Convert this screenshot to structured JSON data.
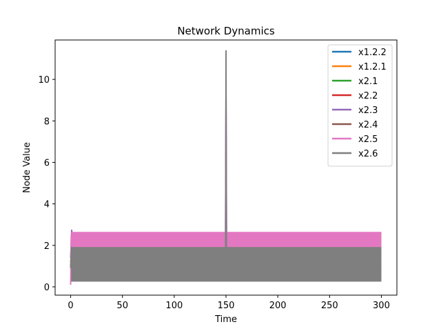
{
  "chart_data": {
    "type": "line",
    "title": "Network Dynamics",
    "xlabel": "Time",
    "ylabel": "Node Value",
    "xlim": [
      -15,
      315
    ],
    "ylim": [
      -0.4,
      11.9
    ],
    "xticks": [
      0,
      50,
      100,
      150,
      200,
      250,
      300
    ],
    "yticks": [
      0,
      2,
      4,
      6,
      8,
      10
    ],
    "grid": false,
    "legend": "top-right",
    "series": [
      {
        "name": "x1.2.2",
        "color": "#1f77b4",
        "x": [
          0,
          2,
          4,
          150,
          151,
          155,
          300
        ],
        "y": [
          1.0,
          2.3,
          1.8,
          1.9,
          1.7,
          1.5,
          1.3
        ],
        "band": [
          0.3,
          2.6
        ]
      },
      {
        "name": "x1.2.1",
        "color": "#ff7f0e",
        "x": [
          0,
          2,
          4,
          150,
          152,
          300
        ],
        "y": [
          1.2,
          2.4,
          1.9,
          2.0,
          1.8,
          1.6
        ],
        "band": [
          0.3,
          2.6
        ]
      },
      {
        "name": "x2.1",
        "color": "#2ca02c",
        "x": [
          0,
          5,
          150,
          153,
          300
        ],
        "y": [
          1.0,
          2.0,
          1.8,
          2.5,
          1.6
        ],
        "band": [
          0.3,
          2.6
        ]
      },
      {
        "name": "x2.2",
        "color": "#d62728",
        "x": [
          0,
          5,
          150,
          300
        ],
        "y": [
          1.0,
          2.0,
          1.8,
          1.7
        ],
        "band": [
          0.3,
          2.6
        ]
      },
      {
        "name": "x2.3",
        "color": "#9467bd",
        "x": [
          0,
          1,
          3,
          149.5,
          150,
          150.5,
          152,
          300
        ],
        "y": [
          1.4,
          2.75,
          1.5,
          2.0,
          9.3,
          2.5,
          1.8,
          1.7
        ],
        "band": [
          0.3,
          2.6
        ]
      },
      {
        "name": "x2.4",
        "color": "#8c564b",
        "x": [
          0,
          3,
          150,
          151,
          300
        ],
        "y": [
          1.0,
          1.9,
          1.9,
          2.2,
          1.6
        ],
        "band": [
          0.3,
          2.6
        ]
      },
      {
        "name": "x2.5",
        "color": "#e377c2",
        "x": [
          0,
          0.6,
          2,
          149.5,
          150,
          150.5,
          300
        ],
        "y": [
          0.1,
          2.5,
          1.7,
          1.5,
          9.0,
          1.2,
          0.7
        ],
        "band": [
          0.3,
          2.65
        ]
      },
      {
        "name": "x2.6",
        "color": "#7f7f7f",
        "x": [
          0,
          1,
          149.6,
          150,
          150.4,
          300
        ],
        "y": [
          0.9,
          1.9,
          0.5,
          11.4,
          0.4,
          1.0
        ],
        "band": [
          0.25,
          1.92
        ]
      }
    ]
  }
}
